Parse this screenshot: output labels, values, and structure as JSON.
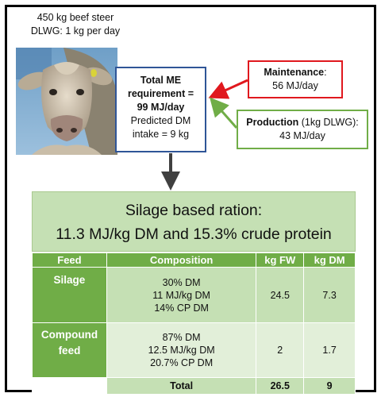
{
  "steer": {
    "line1": "450 kg beef steer",
    "line2": "DLWG: 1 kg per day"
  },
  "me_box": {
    "line1": "Total ME",
    "line2": "requirement =",
    "line3": "99 MJ/day",
    "line4": "Predicted DM",
    "line5": "intake = 9 kg"
  },
  "maintenance": {
    "label": "Maintenance",
    "colon": ":",
    "value": "56 MJ/day"
  },
  "production": {
    "label": "Production",
    "qualifier": " (1kg DLWG):",
    "value": "43 MJ/day"
  },
  "ration": {
    "line1": "Silage based ration:",
    "line2": "11.3 MJ/kg DM and 15.3% crude protein"
  },
  "table": {
    "headers": [
      "Feed",
      "Composition",
      "kg FW",
      "kg DM"
    ],
    "rows": [
      {
        "feed": "Silage",
        "composition": [
          "30% DM",
          "11 MJ/kg DM",
          "14% CP DM"
        ],
        "kg_fw": "24.5",
        "kg_dm": "7.3"
      },
      {
        "feed_line1": "Compound",
        "feed_line2": "feed",
        "composition": [
          "87% DM",
          "12.5 MJ/kg DM",
          "20.7% CP DM"
        ],
        "kg_fw": "2",
        "kg_dm": "1.7"
      }
    ],
    "total": {
      "label": "Total",
      "kg_fw": "26.5",
      "kg_dm": "9"
    }
  },
  "colors": {
    "me_border": "#2f5597",
    "maintenance_border": "#e0181e",
    "production_border": "#70ad47",
    "header_green": "#70ad47",
    "light_green": "#c5e0b4",
    "lighter_green": "#e2efd9"
  },
  "icons": [
    "steer-photo"
  ]
}
